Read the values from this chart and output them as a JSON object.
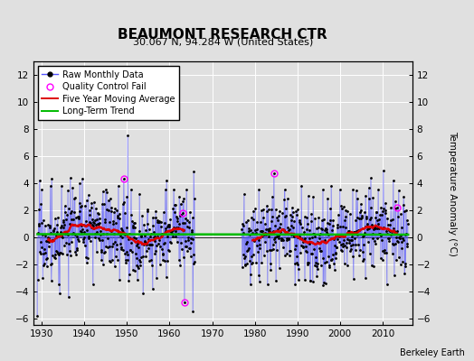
{
  "title": "BEAUMONT RESEARCH CTR",
  "subtitle": "30.067 N, 94.284 W (United States)",
  "ylabel": "Temperature Anomaly (°C)",
  "credit": "Berkeley Earth",
  "ylim": [
    -6.5,
    13
  ],
  "yticks": [
    -6,
    -4,
    -2,
    0,
    2,
    4,
    6,
    8,
    10,
    12
  ],
  "xlim": [
    1928,
    2017
  ],
  "xticks": [
    1930,
    1940,
    1950,
    1960,
    1970,
    1980,
    1990,
    2000,
    2010
  ],
  "background_color": "#e0e0e0",
  "plot_bg_color": "#e0e0e0",
  "raw_color": "#5555ff",
  "ma_color": "#dd0000",
  "trend_color": "#00bb00",
  "qc_color": "magenta",
  "seg1_start": 1929,
  "seg1_end": 1966,
  "seg2_start": 1977,
  "seg2_end": 2016,
  "qc_points": [
    {
      "year": 1949.25,
      "value": 4.3
    },
    {
      "year": 1963.0,
      "value": 1.8
    },
    {
      "year": 1963.5,
      "value": -4.8
    },
    {
      "year": 1984.5,
      "value": 4.7
    },
    {
      "year": 2013.5,
      "value": 2.2
    }
  ],
  "spike_year": 1950.25,
  "spike_value": 7.5,
  "noise_std": 1.4,
  "ma_window": 60,
  "figsize": [
    5.24,
    4.0
  ],
  "dpi": 100
}
